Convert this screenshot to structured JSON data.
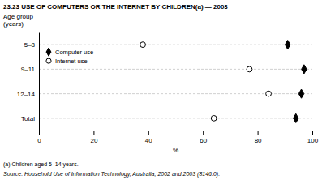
{
  "chart_data": {
    "type": "dot",
    "orientation": "horizontal",
    "title": "23.23   USE OF COMPUTERS OR THE INTERNET BY CHILDREN(a) — 2003",
    "ylabel": "Age group\n(years)",
    "xlabel": "%",
    "categories": [
      "5–8",
      "9–11",
      "12–14",
      "Total"
    ],
    "series": [
      {
        "name": "Computer use",
        "color": "#000000",
        "marker": "diamond",
        "values": [
          91,
          97,
          96,
          94
        ]
      },
      {
        "name": "Internet use",
        "color": "#000000",
        "marker": "open-circle",
        "values": [
          38,
          77,
          84,
          64
        ]
      }
    ],
    "xlim": [
      0,
      100
    ],
    "xticks": [
      0,
      20,
      40,
      60,
      80,
      100
    ],
    "grid": true,
    "legend": "upper left",
    "annotations": [
      "(a) Children aged 5–14 years.",
      "Source: Household Use of Information Technology, Australia, 2002 and 2003 (8146.0)."
    ]
  }
}
